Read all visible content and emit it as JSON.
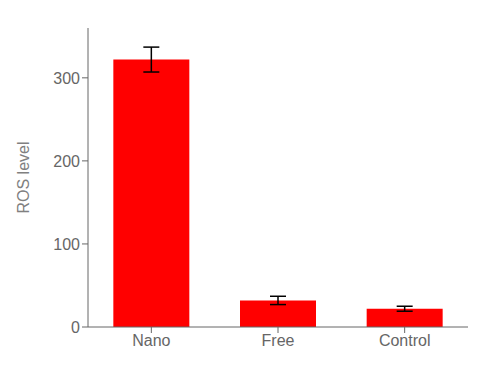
{
  "chart_data": {
    "type": "bar",
    "categories": [
      "Nano",
      "Free",
      "Control"
    ],
    "values": [
      322,
      32,
      22
    ],
    "errors": [
      15,
      5,
      3
    ],
    "color": "#ff0000",
    "ylabel": "ROS level",
    "ylim": [
      0,
      360
    ],
    "yticks": [
      0,
      100,
      200,
      300
    ],
    "grid": false
  }
}
